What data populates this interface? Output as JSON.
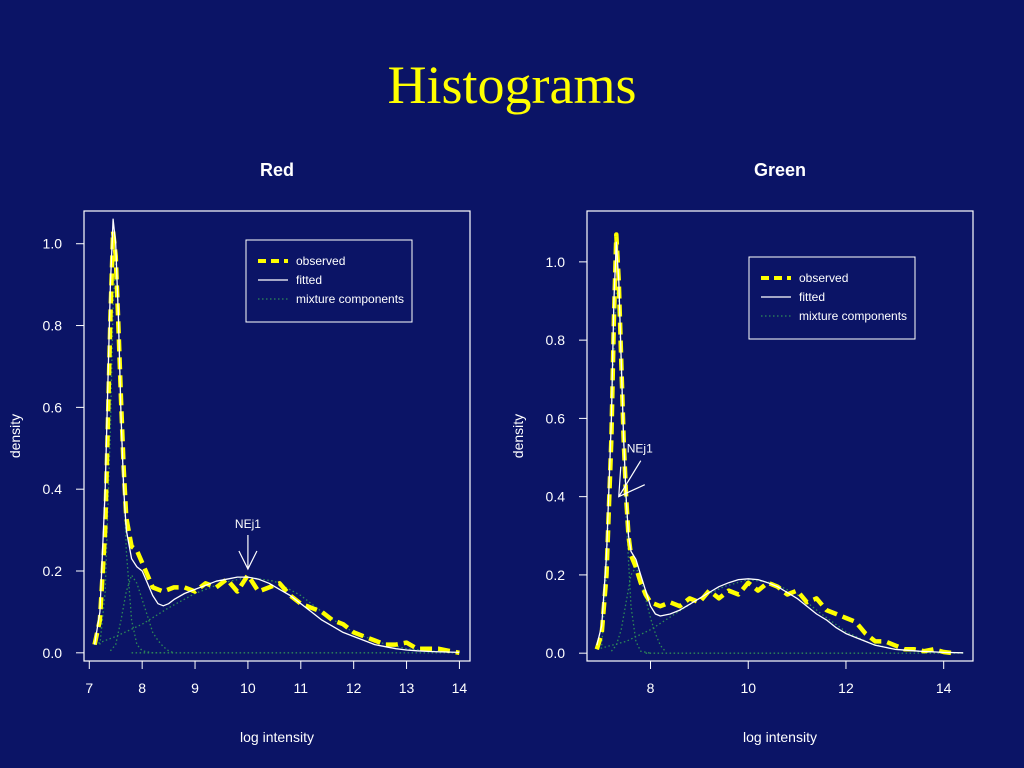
{
  "slide": {
    "title": "Histograms"
  },
  "colors": {
    "background": "#0b1466",
    "title": "#ffff00",
    "observed": "#ffff00",
    "fitted": "#ffffff",
    "components": "#2e8b57",
    "axes": "#ffffff"
  },
  "chart_data": [
    {
      "type": "line",
      "title": "Red",
      "xlabel": "log intensity",
      "ylabel": "density",
      "xlim": [
        6.9,
        14.2
      ],
      "ylim": [
        -0.02,
        1.08
      ],
      "xticks": [
        7,
        8,
        9,
        10,
        11,
        12,
        13,
        14
      ],
      "yticks": [
        0.0,
        0.2,
        0.4,
        0.6,
        0.8,
        1.0
      ],
      "legend": {
        "position": "top-right",
        "entries": [
          "observed",
          "fitted",
          "mixture components"
        ]
      },
      "annotation": {
        "text": "NEj1",
        "x": 10.0,
        "y": 0.2
      },
      "series": [
        {
          "name": "observed",
          "style": "dashed",
          "x": [
            7.1,
            7.2,
            7.3,
            7.35,
            7.4,
            7.45,
            7.5,
            7.55,
            7.6,
            7.65,
            7.7,
            7.8,
            7.9,
            8.0,
            8.1,
            8.2,
            8.4,
            8.6,
            8.8,
            9.0,
            9.2,
            9.4,
            9.6,
            9.8,
            10.0,
            10.2,
            10.4,
            10.6,
            10.8,
            11.0,
            11.2,
            11.4,
            11.6,
            11.8,
            12.0,
            12.2,
            12.4,
            12.6,
            12.8,
            13.0,
            13.2,
            13.4,
            13.6,
            13.8,
            14.0
          ],
          "values": [
            0.02,
            0.08,
            0.3,
            0.55,
            0.82,
            1.03,
            0.97,
            0.8,
            0.62,
            0.45,
            0.33,
            0.26,
            0.25,
            0.22,
            0.19,
            0.16,
            0.15,
            0.16,
            0.16,
            0.15,
            0.17,
            0.16,
            0.18,
            0.15,
            0.19,
            0.15,
            0.16,
            0.17,
            0.14,
            0.12,
            0.11,
            0.1,
            0.08,
            0.07,
            0.05,
            0.04,
            0.03,
            0.02,
            0.02,
            0.025,
            0.01,
            0.01,
            0.01,
            0.005,
            0.0
          ]
        },
        {
          "name": "fitted",
          "style": "solid",
          "x": [
            7.1,
            7.2,
            7.3,
            7.35,
            7.4,
            7.45,
            7.5,
            7.55,
            7.6,
            7.65,
            7.7,
            7.8,
            7.9,
            8.0,
            8.1,
            8.2,
            8.3,
            8.4,
            8.5,
            8.6,
            8.8,
            9.0,
            9.2,
            9.4,
            9.6,
            9.8,
            10.0,
            10.2,
            10.4,
            10.6,
            10.8,
            11.0,
            11.2,
            11.4,
            11.6,
            11.8,
            12.0,
            12.2,
            12.4,
            12.6,
            12.8,
            13.0,
            13.2,
            13.5,
            14.0
          ],
          "values": [
            0.02,
            0.1,
            0.4,
            0.65,
            0.9,
            1.06,
            1.0,
            0.82,
            0.58,
            0.4,
            0.3,
            0.23,
            0.21,
            0.2,
            0.17,
            0.14,
            0.12,
            0.115,
            0.12,
            0.13,
            0.145,
            0.155,
            0.165,
            0.175,
            0.18,
            0.185,
            0.185,
            0.18,
            0.17,
            0.155,
            0.14,
            0.12,
            0.1,
            0.08,
            0.065,
            0.05,
            0.04,
            0.03,
            0.02,
            0.015,
            0.01,
            0.007,
            0.005,
            0.003,
            0.001
          ]
        },
        {
          "name": "mixture components",
          "style": "dotted",
          "x": [
            7.2,
            7.3,
            7.4,
            7.45,
            7.5,
            7.55,
            7.6,
            7.7,
            7.8,
            7.9,
            8.0,
            8.2,
            8.4
          ],
          "values": [
            0.02,
            0.15,
            0.55,
            0.85,
            0.95,
            0.85,
            0.6,
            0.25,
            0.08,
            0.02,
            0.005,
            0.0,
            0.0
          ]
        },
        {
          "name": "mixture components",
          "style": "dotted",
          "x": [
            7.4,
            7.5,
            7.6,
            7.7,
            7.8,
            7.9,
            8.0,
            8.1,
            8.2,
            8.3,
            8.4,
            8.5,
            8.6
          ],
          "values": [
            0.005,
            0.02,
            0.08,
            0.15,
            0.19,
            0.17,
            0.13,
            0.09,
            0.05,
            0.03,
            0.015,
            0.005,
            0.0
          ]
        },
        {
          "name": "mixture components",
          "style": "dotted",
          "x": [
            7.1,
            7.5,
            8.0,
            8.5,
            9.0,
            9.5,
            10.0,
            10.5,
            11.0,
            11.5,
            12.0,
            12.5,
            13.0,
            13.5,
            14.0
          ],
          "values": [
            0.02,
            0.04,
            0.07,
            0.11,
            0.145,
            0.17,
            0.185,
            0.175,
            0.14,
            0.09,
            0.05,
            0.025,
            0.01,
            0.004,
            0.001
          ]
        },
        {
          "name": "mixture components",
          "style": "dotted",
          "x": [
            7.8,
            8.5,
            10.0,
            12.0,
            14.0
          ],
          "values": [
            0.0,
            0.0,
            0.0,
            0.0,
            0.0
          ]
        }
      ]
    },
    {
      "type": "line",
      "title": "Green",
      "xlabel": "log intensity",
      "ylabel": "density",
      "xlim": [
        6.7,
        14.6
      ],
      "ylim": [
        -0.02,
        1.13
      ],
      "xticks": [
        8,
        10,
        12,
        14
      ],
      "yticks": [
        0.0,
        0.2,
        0.4,
        0.6,
        0.8,
        1.0
      ],
      "legend": {
        "position": "top-right",
        "entries": [
          "observed",
          "fitted",
          "mixture components"
        ]
      },
      "annotation": {
        "text": "NEj1",
        "x": 7.35,
        "y": 0.4
      },
      "series": [
        {
          "name": "observed",
          "style": "dashed",
          "x": [
            6.9,
            7.0,
            7.1,
            7.2,
            7.25,
            7.3,
            7.35,
            7.4,
            7.45,
            7.5,
            7.55,
            7.6,
            7.7,
            7.8,
            7.9,
            8.0,
            8.2,
            8.4,
            8.6,
            8.8,
            9.0,
            9.2,
            9.4,
            9.6,
            9.8,
            10.0,
            10.2,
            10.4,
            10.6,
            10.8,
            11.0,
            11.2,
            11.4,
            11.6,
            11.8,
            12.0,
            12.2,
            12.4,
            12.6,
            12.8,
            13.0,
            13.2,
            13.4,
            13.6,
            13.8,
            14.0,
            14.2
          ],
          "values": [
            0.01,
            0.05,
            0.2,
            0.55,
            0.85,
            1.07,
            0.95,
            0.75,
            0.55,
            0.4,
            0.3,
            0.25,
            0.22,
            0.18,
            0.15,
            0.13,
            0.12,
            0.13,
            0.12,
            0.14,
            0.13,
            0.16,
            0.14,
            0.16,
            0.15,
            0.18,
            0.16,
            0.18,
            0.17,
            0.15,
            0.16,
            0.13,
            0.14,
            0.11,
            0.1,
            0.09,
            0.08,
            0.05,
            0.03,
            0.03,
            0.02,
            0.01,
            0.01,
            0.005,
            0.01,
            0.003,
            0.0
          ]
        },
        {
          "name": "fitted",
          "style": "solid",
          "x": [
            6.9,
            7.0,
            7.1,
            7.2,
            7.25,
            7.3,
            7.35,
            7.4,
            7.45,
            7.5,
            7.55,
            7.6,
            7.7,
            7.8,
            7.9,
            8.0,
            8.1,
            8.2,
            8.4,
            8.6,
            8.8,
            9.0,
            9.2,
            9.4,
            9.6,
            9.8,
            10.0,
            10.2,
            10.4,
            10.6,
            10.8,
            11.0,
            11.2,
            11.4,
            11.6,
            11.8,
            12.0,
            12.2,
            12.4,
            12.6,
            12.8,
            13.0,
            13.5,
            14.0,
            14.4
          ],
          "values": [
            0.02,
            0.07,
            0.25,
            0.6,
            0.9,
            1.05,
            0.95,
            0.75,
            0.55,
            0.4,
            0.3,
            0.26,
            0.24,
            0.2,
            0.16,
            0.12,
            0.1,
            0.095,
            0.1,
            0.11,
            0.125,
            0.14,
            0.155,
            0.17,
            0.18,
            0.188,
            0.19,
            0.188,
            0.18,
            0.17,
            0.155,
            0.14,
            0.12,
            0.1,
            0.085,
            0.065,
            0.05,
            0.04,
            0.03,
            0.02,
            0.015,
            0.01,
            0.005,
            0.002,
            0.001
          ]
        },
        {
          "name": "mixture components",
          "style": "dotted",
          "x": [
            7.0,
            7.1,
            7.2,
            7.3,
            7.35,
            7.4,
            7.5,
            7.6,
            7.7,
            7.8,
            8.0
          ],
          "values": [
            0.02,
            0.2,
            0.6,
            0.92,
            0.9,
            0.7,
            0.35,
            0.12,
            0.03,
            0.005,
            0.0
          ]
        },
        {
          "name": "mixture components",
          "style": "dotted",
          "x": [
            7.2,
            7.3,
            7.4,
            7.5,
            7.6,
            7.7,
            7.8,
            7.9,
            8.0,
            8.1,
            8.2,
            8.3
          ],
          "values": [
            0.005,
            0.02,
            0.06,
            0.13,
            0.2,
            0.22,
            0.19,
            0.14,
            0.09,
            0.05,
            0.02,
            0.005
          ]
        },
        {
          "name": "mixture components",
          "style": "dotted",
          "x": [
            6.9,
            7.5,
            8.0,
            8.5,
            9.0,
            9.5,
            10.0,
            10.5,
            11.0,
            11.5,
            12.0,
            12.5,
            13.0,
            13.5,
            14.0
          ],
          "values": [
            0.01,
            0.03,
            0.06,
            0.1,
            0.14,
            0.17,
            0.188,
            0.18,
            0.15,
            0.1,
            0.055,
            0.025,
            0.01,
            0.004,
            0.001
          ]
        },
        {
          "name": "mixture components",
          "style": "dotted",
          "x": [
            7.9,
            8.3,
            10.0,
            12.0,
            14.4
          ],
          "values": [
            0.0,
            0.0,
            0.0,
            0.0,
            0.0
          ]
        }
      ]
    }
  ]
}
